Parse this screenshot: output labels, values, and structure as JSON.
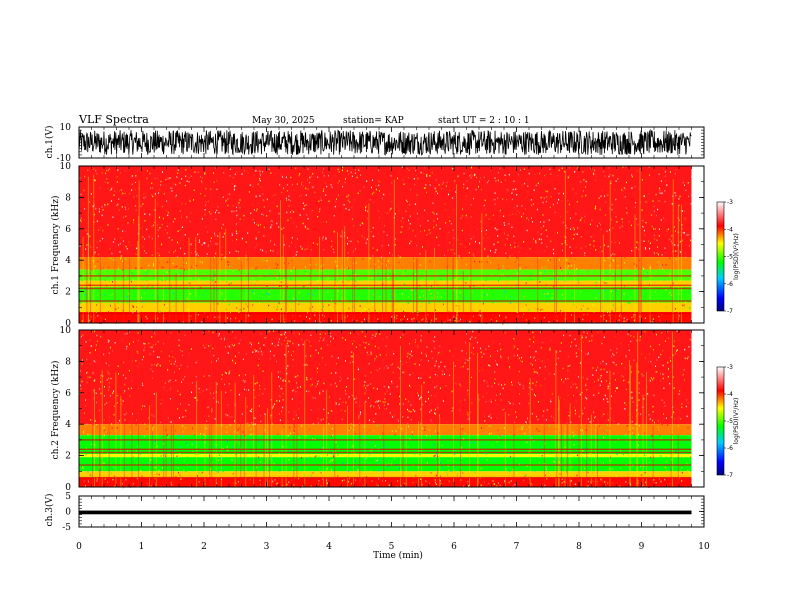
{
  "header": {
    "title": "VLF Spectra",
    "date": "May 30, 2025",
    "station": "station= KAP",
    "start": "start  UT =   2 : 10 : 1"
  },
  "chart_data": [
    {
      "type": "line",
      "name": "waveform-ch1",
      "ylabel": "ch.1(V)",
      "ylim": [
        -10,
        10
      ],
      "y_ticks": [
        "10",
        "-10"
      ],
      "xlim": [
        0,
        10
      ],
      "data_end_min": 9.8,
      "amplitude_range_v": [
        -8,
        8
      ]
    },
    {
      "type": "heatmap",
      "name": "spectrogram-ch1",
      "ylabel": "ch.1 Frequency (kHz)",
      "ylim": [
        0,
        10
      ],
      "y_ticks": [
        "0",
        "2",
        "4",
        "6",
        "8",
        "10"
      ],
      "xlim": [
        0,
        10
      ],
      "data_end_min": 9.8,
      "bands_khz": [
        {
          "from": 4.2,
          "to": 10,
          "level": -3.8
        },
        {
          "from": 3.4,
          "to": 4.2,
          "level": -4.2
        },
        {
          "from": 2.7,
          "to": 3.4,
          "level": -5.0
        },
        {
          "from": 2.3,
          "to": 2.7,
          "level": -4.4
        },
        {
          "from": 1.3,
          "to": 2.3,
          "level": -5.1
        },
        {
          "from": 0.7,
          "to": 1.3,
          "level": -4.4
        },
        {
          "from": 0,
          "to": 0.7,
          "level": -3.9
        }
      ],
      "colorbar": {
        "label": "log(PSD)(V²/Hz)",
        "ticks": [
          "-3",
          "-4",
          "-5",
          "-6",
          "-7"
        ],
        "range": [
          -7,
          -3
        ]
      }
    },
    {
      "type": "heatmap",
      "name": "spectrogram-ch2",
      "ylabel": "ch.2 Frequency (kHz)",
      "ylim": [
        0,
        10
      ],
      "y_ticks": [
        "0",
        "2",
        "4",
        "6",
        "8",
        "10"
      ],
      "xlim": [
        0,
        10
      ],
      "data_end_min": 9.8,
      "bands_khz": [
        {
          "from": 4.0,
          "to": 10,
          "level": -3.8
        },
        {
          "from": 3.3,
          "to": 4.0,
          "level": -4.2
        },
        {
          "from": 2.1,
          "to": 3.3,
          "level": -5.2
        },
        {
          "from": 1.9,
          "to": 2.1,
          "level": -4.5
        },
        {
          "from": 1.0,
          "to": 1.9,
          "level": -5.2
        },
        {
          "from": 0.6,
          "to": 1.0,
          "level": -4.4
        },
        {
          "from": 0,
          "to": 0.6,
          "level": -3.9
        }
      ],
      "colorbar": {
        "label": "log(PSD)(V²/Hz)",
        "ticks": [
          "-3",
          "-4",
          "-5",
          "-6",
          "-7"
        ],
        "range": [
          -7,
          -3
        ]
      }
    },
    {
      "type": "line",
      "name": "waveform-ch3",
      "ylabel": "ch.3(V)",
      "ylim": [
        -5,
        5
      ],
      "y_ticks": [
        "5",
        "0",
        "-5"
      ],
      "xlabel": "Time  (min)",
      "x_ticks": [
        "0",
        "1",
        "2",
        "3",
        "4",
        "5",
        "6",
        "7",
        "8",
        "9",
        "10"
      ],
      "xlim": [
        0,
        10
      ],
      "data_end_min": 9.8,
      "level_v": -0.3,
      "amplitude_v": 0.6
    }
  ]
}
